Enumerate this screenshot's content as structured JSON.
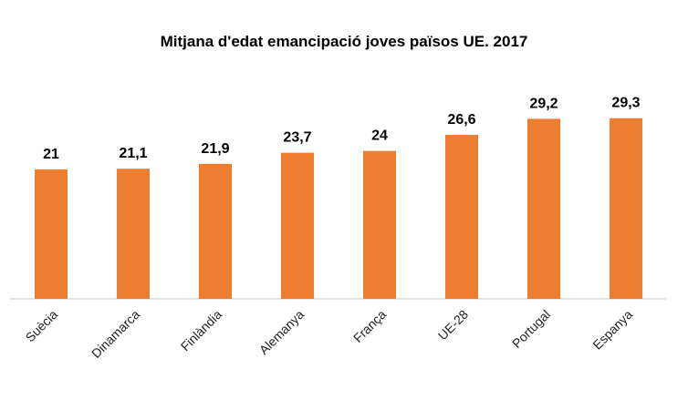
{
  "chart_data": {
    "type": "bar",
    "title": "Mitjana d'edat emancipació joves països UE. 2017",
    "categories": [
      "Suècia",
      "Dinamarca",
      "Finlàndia",
      "Alemanya",
      "França",
      "UE-28",
      "Portugal",
      "Espanya"
    ],
    "values": [
      21,
      21.1,
      21.9,
      23.7,
      24,
      26.6,
      29.2,
      29.3
    ],
    "value_labels": [
      "21",
      "21,1",
      "21,9",
      "23,7",
      "24",
      "26,6",
      "29,2",
      "29,3"
    ],
    "color": "#ED7D31",
    "ylim": [
      0,
      30
    ],
    "grid": false
  }
}
